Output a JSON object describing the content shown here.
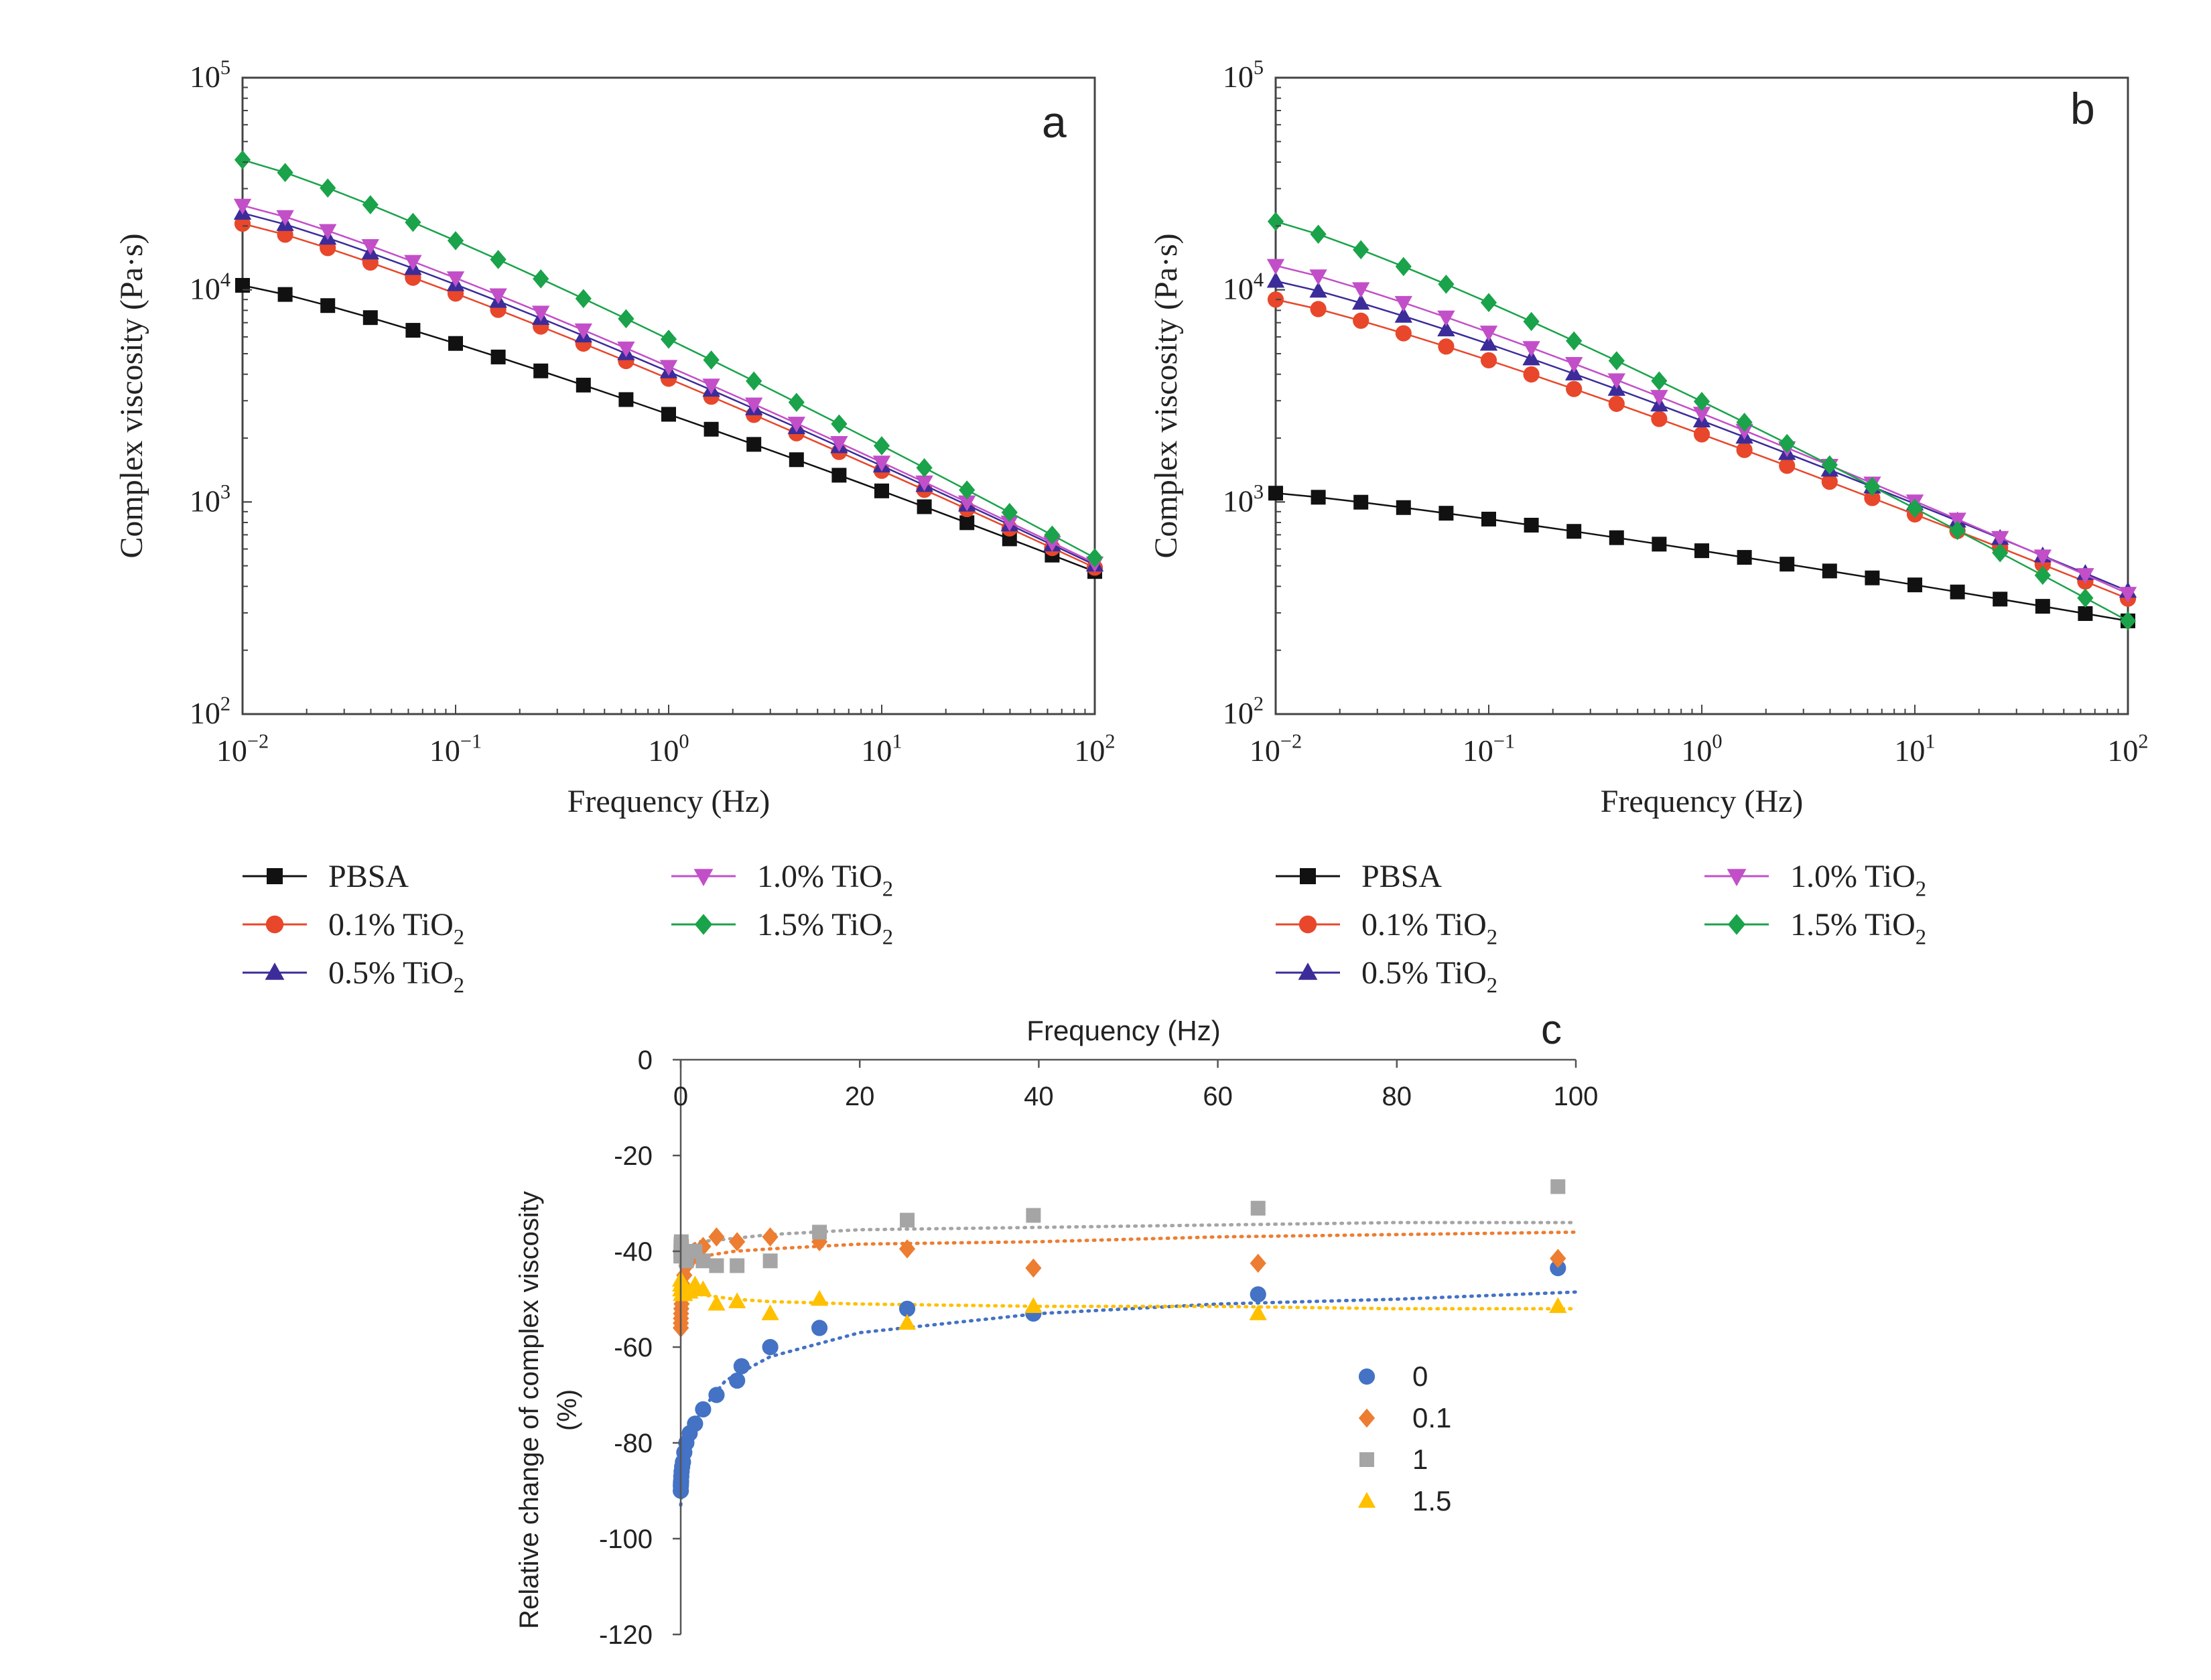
{
  "chart_data": [
    {
      "panel": "a",
      "type": "line",
      "xscale": "log",
      "yscale": "log",
      "xlabel": "Frequency (Hz)",
      "ylabel": "Complex viscosity (Pa·s)",
      "xlim": [
        0.01,
        100
      ],
      "ylim": [
        100,
        100000
      ],
      "x_ticks": [
        0.01,
        0.1,
        1,
        10,
        100
      ],
      "x_tick_labels": [
        [
          "10",
          "−2"
        ],
        [
          "10",
          "−1"
        ],
        [
          "10",
          "0"
        ],
        [
          "10",
          "1"
        ],
        [
          "10",
          "2"
        ]
      ],
      "y_ticks": [
        100,
        1000,
        10000,
        100000
      ],
      "y_tick_labels": [
        [
          "10",
          "2"
        ],
        [
          "10",
          "3"
        ],
        [
          "10",
          "4"
        ],
        [
          "10",
          "5"
        ]
      ],
      "series": [
        {
          "name": "PBSA",
          "formula": [
            "PBSA",
            ""
          ],
          "color": "#111111",
          "marker": "square",
          "v0": 10500,
          "vinf": 470
        },
        {
          "name": "0.1% TiO2",
          "formula": [
            "0.1% TiO",
            "2"
          ],
          "color": "#e8472b",
          "marker": "circle",
          "v0": 20500,
          "vinf": 490
        },
        {
          "name": "0.5% TiO2",
          "formula": [
            "0.5% TiO",
            "2"
          ],
          "color": "#3b2c9a",
          "marker": "triangle-up",
          "v0": 23000,
          "vinf": 505
        },
        {
          "name": "1.0% TiO2",
          "formula": [
            "1.0% TiO",
            "2"
          ],
          "color": "#c24fc8",
          "marker": "triangle-down",
          "v0": 25000,
          "vinf": 515
        },
        {
          "name": "1.5% TiO2",
          "formula": [
            "1.5% TiO",
            "2"
          ],
          "color": "#1aa34a",
          "marker": "diamond",
          "v0": 41000,
          "vinf": 545
        }
      ],
      "legend_order": [
        0,
        3,
        1,
        4,
        2
      ]
    },
    {
      "panel": "b",
      "type": "line",
      "xscale": "log",
      "yscale": "log",
      "xlabel": "Frequency (Hz)",
      "ylabel": "Complex viscosity (Pa·s)",
      "xlim": [
        0.01,
        100
      ],
      "ylim": [
        100,
        100000
      ],
      "x_ticks": [
        0.01,
        0.1,
        1,
        10,
        100
      ],
      "x_tick_labels": [
        [
          "10",
          "−2"
        ],
        [
          "10",
          "−1"
        ],
        [
          "10",
          "0"
        ],
        [
          "10",
          "1"
        ],
        [
          "10",
          "2"
        ]
      ],
      "y_ticks": [
        100,
        1000,
        10000,
        100000
      ],
      "y_tick_labels": [
        [
          "10",
          "2"
        ],
        [
          "10",
          "3"
        ],
        [
          "10",
          "4"
        ],
        [
          "10",
          "5"
        ]
      ],
      "series": [
        {
          "name": "PBSA",
          "formula": [
            "PBSA",
            ""
          ],
          "color": "#111111",
          "marker": "square",
          "v0": 1100,
          "vinf": 275
        },
        {
          "name": "0.1% TiO2",
          "formula": [
            "0.1% TiO",
            "2"
          ],
          "color": "#e8472b",
          "marker": "circle",
          "v0": 9000,
          "vinf": 350
        },
        {
          "name": "0.5% TiO2",
          "formula": [
            "0.5% TiO",
            "2"
          ],
          "color": "#3b2c9a",
          "marker": "triangle-up",
          "v0": 11000,
          "vinf": 380
        },
        {
          "name": "1.0% TiO2",
          "formula": [
            "1.0% TiO",
            "2"
          ],
          "color": "#c24fc8",
          "marker": "triangle-down",
          "v0": 13000,
          "vinf": 370
        },
        {
          "name": "1.5% TiO2",
          "formula": [
            "1.5% TiO",
            "2"
          ],
          "color": "#1aa34a",
          "marker": "diamond",
          "v0": 21000,
          "vinf": 275
        }
      ],
      "legend_order": [
        0,
        3,
        1,
        4,
        2
      ]
    },
    {
      "panel": "c",
      "type": "scatter",
      "xlabel": "Frequency (Hz)",
      "ylabel": "Relative change of complex viscosity (%)",
      "xlim": [
        0,
        100
      ],
      "ylim": [
        -120,
        0
      ],
      "x_ticks": [
        0,
        20,
        40,
        60,
        80,
        100
      ],
      "y_ticks": [
        0,
        -20,
        -40,
        -60,
        -80,
        -100,
        -120
      ],
      "x_axis_position": "top",
      "legend_placement": "center-right",
      "trendlines": "dotted",
      "series": [
        {
          "name": "0",
          "color": "#4472c4",
          "marker": "circle",
          "points": [
            [
              0.01,
              -90
            ],
            [
              0.016,
              -89
            ],
            [
              0.025,
              -88.5
            ],
            [
              0.04,
              -88
            ],
            [
              0.063,
              -87
            ],
            [
              0.1,
              -86
            ],
            [
              0.16,
              -85
            ],
            [
              0.25,
              -84
            ],
            [
              0.4,
              -82
            ],
            [
              0.63,
              -80
            ],
            [
              1,
              -78
            ],
            [
              1.6,
              -76
            ],
            [
              2.5,
              -73
            ],
            [
              4,
              -70
            ],
            [
              6.3,
              -67
            ],
            [
              6.8,
              -64
            ],
            [
              10,
              -60
            ],
            [
              15.5,
              -56
            ],
            [
              25.3,
              -52
            ],
            [
              39.4,
              -53
            ],
            [
              64.5,
              -49
            ],
            [
              98,
              -43.5
            ]
          ],
          "trend": [
            [
              0.001,
              -93
            ],
            [
              0.5,
              -86
            ],
            [
              2,
              -74
            ],
            [
              5,
              -67
            ],
            [
              10,
              -62
            ],
            [
              20,
              -57
            ],
            [
              40,
              -53
            ],
            [
              60,
              -51
            ],
            [
              80,
              -50
            ],
            [
              100,
              -48.5
            ]
          ]
        },
        {
          "name": "0.1",
          "color": "#ed7d31",
          "marker": "diamond",
          "points": [
            [
              0.01,
              -56
            ],
            [
              0.016,
              -55
            ],
            [
              0.025,
              -54
            ],
            [
              0.04,
              -53
            ],
            [
              0.063,
              -52
            ],
            [
              0.1,
              -51
            ],
            [
              0.16,
              -49
            ],
            [
              0.25,
              -47
            ],
            [
              0.4,
              -45
            ],
            [
              0.63,
              -43
            ],
            [
              1,
              -42
            ],
            [
              1.6,
              -40
            ],
            [
              2.5,
              -39
            ],
            [
              4,
              -37
            ],
            [
              6.3,
              -38
            ],
            [
              10,
              -37
            ],
            [
              15.5,
              -38
            ],
            [
              25.3,
              -39.5
            ],
            [
              39.4,
              -43.5
            ],
            [
              64.5,
              -42.5
            ],
            [
              98,
              -41.5
            ]
          ],
          "trend": [
            [
              0.001,
              -50
            ],
            [
              1,
              -43
            ],
            [
              2.5,
              -41
            ],
            [
              6,
              -40
            ],
            [
              10,
              -39.5
            ],
            [
              20,
              -38.5
            ],
            [
              40,
              -38
            ],
            [
              60,
              -37
            ],
            [
              80,
              -36.5
            ],
            [
              100,
              -36
            ]
          ]
        },
        {
          "name": "1",
          "color": "#a5a5a5",
          "marker": "square",
          "points": [
            [
              0.01,
              -41
            ],
            [
              0.016,
              -40
            ],
            [
              0.025,
              -39
            ],
            [
              0.04,
              -38.5
            ],
            [
              0.063,
              -38
            ],
            [
              0.1,
              -39
            ],
            [
              0.16,
              -40
            ],
            [
              0.25,
              -41
            ],
            [
              0.4,
              -40
            ],
            [
              0.63,
              -42
            ],
            [
              1,
              -40
            ],
            [
              1.6,
              -40
            ],
            [
              2.5,
              -42
            ],
            [
              4,
              -43
            ],
            [
              6.3,
              -43
            ],
            [
              10,
              -42
            ],
            [
              15.5,
              -36
            ],
            [
              25.3,
              -33.5
            ],
            [
              39.4,
              -32.5
            ],
            [
              64.5,
              -31
            ],
            [
              98,
              -26.5
            ]
          ],
          "trend": [
            [
              0.001,
              -40
            ],
            [
              2,
              -38
            ],
            [
              5,
              -37.5
            ],
            [
              10,
              -36.5
            ],
            [
              20,
              -35.5
            ],
            [
              40,
              -35
            ],
            [
              60,
              -34.5
            ],
            [
              80,
              -34
            ],
            [
              100,
              -34
            ]
          ]
        },
        {
          "name": "1.5",
          "color": "#ffc000",
          "marker": "triangle-up",
          "points": [
            [
              0.01,
              -46
            ],
            [
              0.016,
              -47
            ],
            [
              0.025,
              -48
            ],
            [
              0.04,
              -47
            ],
            [
              0.063,
              -48
            ],
            [
              0.1,
              -49
            ],
            [
              0.16,
              -48
            ],
            [
              0.25,
              -47
            ],
            [
              0.4,
              -49
            ],
            [
              0.63,
              -48
            ],
            [
              1,
              -48.5
            ],
            [
              1.6,
              -47
            ],
            [
              2.5,
              -48
            ],
            [
              4,
              -51
            ],
            [
              6.3,
              -50.5
            ],
            [
              10,
              -53
            ],
            [
              15.5,
              -50
            ],
            [
              25.3,
              -55
            ],
            [
              39.4,
              -51.5
            ],
            [
              64.5,
              -53
            ],
            [
              98,
              -51.5
            ]
          ],
          "trend": [
            [
              0.001,
              -47
            ],
            [
              2,
              -49
            ],
            [
              6,
              -50
            ],
            [
              10,
              -50.5
            ],
            [
              20,
              -51
            ],
            [
              40,
              -51.5
            ],
            [
              60,
              -51.5
            ],
            [
              80,
              -52
            ],
            [
              100,
              -52
            ]
          ]
        }
      ]
    }
  ],
  "panels": {
    "a": {
      "letter": "a",
      "xlabel": "Frequency (Hz)",
      "ylabel": "Complex viscosity (Pa·s)"
    },
    "b": {
      "letter": "b",
      "xlabel": "Frequency (Hz)",
      "ylabel": "Complex viscosity (Pa·s)"
    },
    "c": {
      "letter": "c",
      "xlabel": "Frequency (Hz)",
      "ylabel_line1": "Relative change of complex viscosity",
      "ylabel_line2": "(%)"
    }
  }
}
